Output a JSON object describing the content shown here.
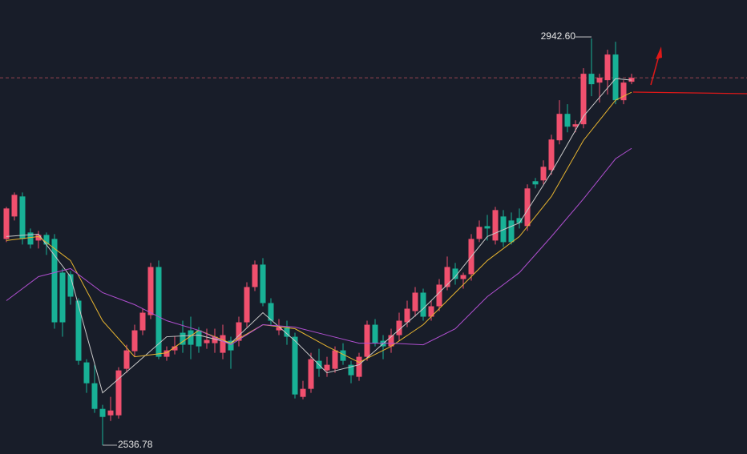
{
  "chart_data": {
    "type": "candlestick",
    "up_color": "#f0506e",
    "down_color": "#18b196",
    "ylim": [
      2528,
      2981
    ],
    "open": [
      2742.6,
      2765,
      2785,
      2749,
      2741,
      2746.6,
      2742.6,
      2709,
      2707.4,
      2681,
      2619.4,
      2598.6,
      2573,
      2566.6,
      2566.6,
      2613,
      2630.6,
      2651.4,
      2666.6,
      2714.6,
      2625,
      2631.4,
      2649,
      2651.4,
      2651.4,
      2638.6,
      2638.6,
      2629,
      2641,
      2641,
      2659.4,
      2694.6,
      2717,
      2678.6,
      2651.4,
      2654.6,
      2645,
      2585,
      2593,
      2621,
      2611.4,
      2613,
      2631.4,
      2617,
      2605,
      2625,
      2657,
      2641,
      2635.4,
      2646.6,
      2659.4,
      2670.6,
      2689,
      2665,
      2675.4,
      2694.6,
      2713,
      2702.6,
      2707.4,
      2742.6,
      2755.4,
      2741,
      2765,
      2761,
      2763.4,
      2755.4,
      2800.2,
      2801,
      2811.4,
      2841,
      2867.4,
      2854.6,
      2857,
      2907.4,
      2898.6,
      2901,
      2926.6,
      2881,
      2899.4
    ],
    "high": [
      2774.6,
      2789,
      2789,
      2753,
      2750.6,
      2749,
      2747.4,
      2713,
      2710.6,
      2683.4,
      2622.6,
      2617,
      2577,
      2585,
      2614.6,
      2637,
      2657,
      2673,
      2718.6,
      2721,
      2635.4,
      2645,
      2661,
      2665,
      2654.6,
      2653,
      2653,
      2657,
      2645,
      2665,
      2699.4,
      2721,
      2723.4,
      2683.4,
      2662.6,
      2661,
      2649,
      2601,
      2629,
      2633,
      2625,
      2635.4,
      2638.6,
      2621,
      2629,
      2661,
      2662.6,
      2646.6,
      2653,
      2669,
      2681,
      2694.6,
      2693,
      2681,
      2702.6,
      2725,
      2718.6,
      2709,
      2747.4,
      2761,
      2766.6,
      2774.6,
      2771.4,
      2769,
      2773,
      2797,
      2803.4,
      2821,
      2846.6,
      2881,
      2877,
      2861,
      2913,
      2942.6,
      2907.4,
      2931.4,
      2939.4,
      2901,
      2907.4
    ],
    "low": [
      2739.4,
      2761,
      2737,
      2733,
      2733,
      2726.6,
      2653,
      2645,
      2677,
      2617,
      2589,
      2569,
      2536.78,
      2561,
      2563.4,
      2609,
      2625,
      2646.6,
      2662.6,
      2622.6,
      2621,
      2627.4,
      2629,
      2622.6,
      2629,
      2633,
      2629,
      2622.6,
      2613,
      2635.4,
      2654.6,
      2690.6,
      2675.4,
      2657,
      2646.6,
      2637,
      2583.4,
      2582.6,
      2589,
      2605,
      2605,
      2609,
      2617,
      2598.6,
      2601,
      2621,
      2635.4,
      2622.6,
      2629,
      2641,
      2654.6,
      2665,
      2661,
      2661,
      2670.6,
      2691.4,
      2697,
      2693,
      2701,
      2739.4,
      2741,
      2737,
      2734.6,
      2737,
      2753,
      2750.6,
      2793,
      2797,
      2806.6,
      2837,
      2849,
      2849,
      2853,
      2885,
      2878.6,
      2886.6,
      2877,
      2877,
      2897
    ],
    "close": [
      2773,
      2786.6,
      2742.6,
      2737,
      2746.6,
      2737,
      2659.4,
      2659.4,
      2685,
      2621,
      2598.6,
      2573,
      2565,
      2571.4,
      2611.4,
      2631.4,
      2651.4,
      2669,
      2714.6,
      2625,
      2631.4,
      2635.4,
      2637,
      2637,
      2635.4,
      2641.8,
      2645,
      2646.6,
      2631.4,
      2659.4,
      2694.6,
      2717,
      2678.6,
      2661,
      2654.6,
      2645,
      2587.4,
      2593,
      2622.6,
      2613,
      2617,
      2631.4,
      2621,
      2606.6,
      2625,
      2657,
      2638.6,
      2635.4,
      2646.6,
      2661,
      2673,
      2689,
      2665,
      2675.4,
      2697,
      2714.6,
      2702.6,
      2706.6,
      2742.6,
      2754.6,
      2753,
      2771.4,
      2739.4,
      2739.4,
      2758.6,
      2793,
      2797,
      2814.6,
      2841.8,
      2867.4,
      2854.6,
      2857,
      2907.4,
      2897,
      2903.4,
      2926.6,
      2881,
      2898.6,
      2903.4
    ],
    "high_label": "2942.60",
    "low_label": "2536.78",
    "lines": [
      {
        "color": "#c9c9c9",
        "x": [
          0,
          4,
          8,
          12,
          16,
          20,
          24,
          28,
          32,
          36,
          40,
          44,
          48,
          52,
          56,
          60,
          64,
          68,
          72,
          76,
          78
        ],
        "values": [
          2745,
          2747.4,
          2705,
          2589,
          2617,
          2645,
          2646.6,
          2638.6,
          2669,
          2641,
          2609,
          2617,
          2645,
          2673,
          2705,
          2745,
          2758.6,
          2809,
          2865,
          2902.6,
          2901
        ]
      },
      {
        "color": "#e8b530",
        "x": [
          0,
          4,
          8,
          12,
          16,
          20,
          24,
          28,
          32,
          36,
          40,
          44,
          48,
          52,
          56,
          60,
          64,
          68,
          72,
          76,
          78
        ],
        "values": [
          2741,
          2745,
          2721,
          2661,
          2625,
          2629,
          2651.4,
          2638.6,
          2657,
          2653,
          2635.4,
          2619.4,
          2635.4,
          2657,
          2689,
          2721,
          2745,
          2785,
          2841,
          2881,
          2889
        ]
      },
      {
        "color": "#b04fd0",
        "x": [
          0,
          4,
          8,
          12,
          16,
          20,
          24,
          28,
          32,
          36,
          40,
          44,
          48,
          52,
          56,
          60,
          64,
          68,
          72,
          76,
          78
        ],
        "values": [
          2681,
          2705,
          2713,
          2689,
          2677,
          2661,
          2651.4,
          2637,
          2657,
          2654.6,
          2646.6,
          2638.6,
          2638.6,
          2637,
          2653,
          2685,
          2709,
          2745,
          2782.6,
          2822.6,
          2833
        ]
      }
    ]
  }
}
